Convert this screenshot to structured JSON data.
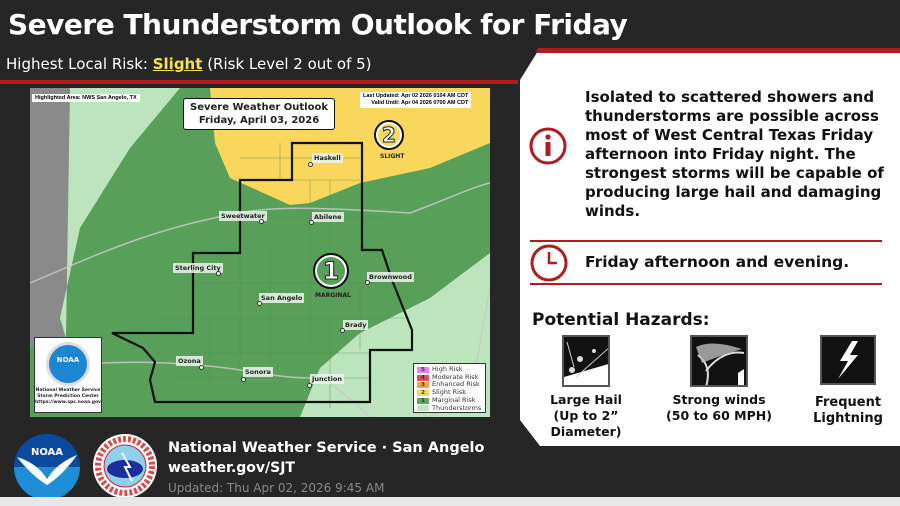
{
  "header": {
    "title": "Severe Thunderstorm Outlook for Friday",
    "subtitle_prefix": "Highest Local Risk: ",
    "subtitle_risk": "Slight",
    "subtitle_suffix": " (Risk Level 2 out of 5)"
  },
  "map": {
    "highlighted_area": "Highlighted Area: NWS San Angelo, TX",
    "last_updated": "Last Updated: Apr 02 2026 0104 AM CDT",
    "valid_until": "Valid Until: Apr 04 2026 0700 AM CDT",
    "outlook_title": "Severe Weather Outlook",
    "outlook_date": "Friday, April 03, 2026",
    "badge_slight": {
      "number": "2",
      "label": "SLIGHT"
    },
    "badge_marginal": {
      "number": "1",
      "label": "MARGINAL"
    },
    "cities": [
      "Haskell",
      "Sweetwater",
      "Abilene",
      "Sterling City",
      "Brownwood",
      "San Angelo",
      "Brady",
      "Ozona",
      "Sonora",
      "Junction"
    ],
    "noaa_box": {
      "logo_text": "NOAA",
      "line1": "National Weather Service",
      "line2": "Storm Prediction Center",
      "line3": "https://www.spc.noaa.gov"
    },
    "legend": [
      {
        "num": "5",
        "label": "High Risk",
        "color": "#e67fe6"
      },
      {
        "num": "4",
        "label": "Moderate Risk",
        "color": "#e05050"
      },
      {
        "num": "3",
        "label": "Enhanced Risk",
        "color": "#f0a050"
      },
      {
        "num": "2",
        "label": "Slight Risk",
        "color": "#f7d660"
      },
      {
        "num": "1",
        "label": "Marginal Risk",
        "color": "#5fa45f"
      },
      {
        "num": "",
        "label": "Thunderstorms",
        "color": "#bfe6bf"
      }
    ],
    "colors": {
      "slight": "#f9d65c",
      "marginal": "#58a05a",
      "tstm": "#bde5bd",
      "outside": "#8a8a8a"
    }
  },
  "info": {
    "icon": "info-icon",
    "text": "Isolated to scattered showers and thunderstorms are possible across most of West Central Texas Friday afternoon into Friday night. The strongest storms will be capable of producing large hail and damaging winds."
  },
  "timing": {
    "icon": "clock-icon",
    "text": "Friday afternoon and evening."
  },
  "hazards": {
    "title": "Potential Hazards:",
    "items": [
      {
        "icon": "hail-icon",
        "line1": "Large Hail",
        "line2": "(Up to 2” Diameter)"
      },
      {
        "icon": "wind-icon",
        "line1": "Strong winds",
        "line2": "(50 to 60 MPH)"
      },
      {
        "icon": "lightning-icon",
        "line1": "Frequent",
        "line2": "Lightning"
      }
    ]
  },
  "footer": {
    "noaa_logo": "NOAA",
    "nws_logo": "NATIONAL WEATHER SERVICE",
    "office": "National Weather Service · San Angelo",
    "url": "weather.gov/SJT",
    "updated": "Updated: Thu Apr 02, 2026 9:45 AM"
  },
  "colors": {
    "accent_red": "#b01c1c",
    "slight_yellow": "#f7e04b",
    "background": "#262626"
  }
}
